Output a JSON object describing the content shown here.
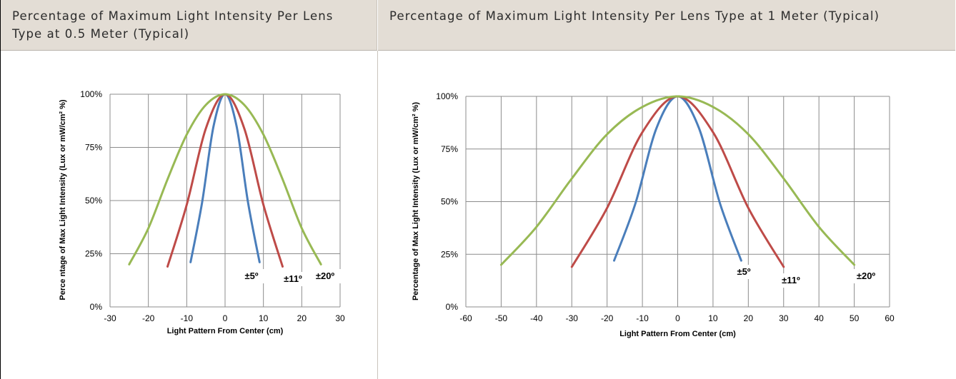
{
  "panels": [
    {
      "header": "Percentage of Maximum Light Intensity Per Lens Type at 0.5 Meter (Typical)"
    },
    {
      "header": "Percentage of Maximum Light Intensity Per Lens Type at 1 Meter (Typical)"
    }
  ],
  "colors": {
    "blue": "#4a7ebb",
    "red": "#be4b48",
    "green": "#98b954",
    "grid": "#8c8c8c",
    "header_bg": "#e3ddd5"
  },
  "chart_data": [
    {
      "type": "line",
      "xlabel": "Light Pattern  From Center (cm)",
      "ylabel": "Perce ntage of Max Light Intensity (Lux or mW/cm² %)",
      "xlim": [
        -30,
        30
      ],
      "ylim": [
        0,
        100
      ],
      "xticks": [
        -30,
        -20,
        -10,
        0,
        10,
        20,
        30
      ],
      "yticks": [
        "0%",
        "25%",
        "50%",
        "75%",
        "100%"
      ],
      "grid": true,
      "series": [
        {
          "name": "±5º",
          "color": "#4a7ebb",
          "x": [
            -9,
            -6,
            -3,
            0,
            3,
            6,
            9
          ],
          "y": [
            21,
            49,
            85,
            100,
            85,
            49,
            21
          ]
        },
        {
          "name": "±11º",
          "color": "#be4b48",
          "x": [
            -15,
            -10,
            -5,
            0,
            5,
            10,
            15
          ],
          "y": [
            19,
            48,
            84,
            100,
            84,
            48,
            19
          ]
        },
        {
          "name": "±20º",
          "color": "#98b954",
          "x": [
            -25,
            -20,
            -15,
            -10,
            -5,
            0,
            5,
            10,
            15,
            20,
            25
          ],
          "y": [
            20,
            37,
            60,
            81,
            95,
            100,
            95,
            81,
            60,
            37,
            20
          ]
        }
      ]
    },
    {
      "type": "line",
      "xlabel": "Light Pattern  From Center (cm)",
      "ylabel": "Percentage of Max Light Intensity (Lux or mW/cm²  %)",
      "xlim": [
        -60,
        60
      ],
      "ylim": [
        0,
        100
      ],
      "xticks": [
        -60,
        -50,
        -40,
        -30,
        -20,
        -10,
        0,
        10,
        20,
        30,
        40,
        50,
        60
      ],
      "yticks": [
        "0%",
        "25%",
        "50%",
        "75%",
        "100%"
      ],
      "grid": true,
      "series": [
        {
          "name": "±5º",
          "color": "#4a7ebb",
          "x": [
            -18,
            -12,
            -6,
            0,
            6,
            12,
            18
          ],
          "y": [
            22,
            49,
            85,
            100,
            85,
            49,
            22
          ]
        },
        {
          "name": "±11º",
          "color": "#be4b48",
          "x": [
            -30,
            -20,
            -10,
            0,
            10,
            20,
            30
          ],
          "y": [
            19,
            47,
            83,
            100,
            83,
            47,
            19
          ]
        },
        {
          "name": "±20º",
          "color": "#98b954",
          "x": [
            -50,
            -40,
            -30,
            -20,
            -10,
            0,
            10,
            20,
            30,
            40,
            50
          ],
          "y": [
            20,
            38,
            61,
            82,
            95,
            100,
            95,
            82,
            61,
            38,
            20
          ]
        }
      ]
    }
  ]
}
